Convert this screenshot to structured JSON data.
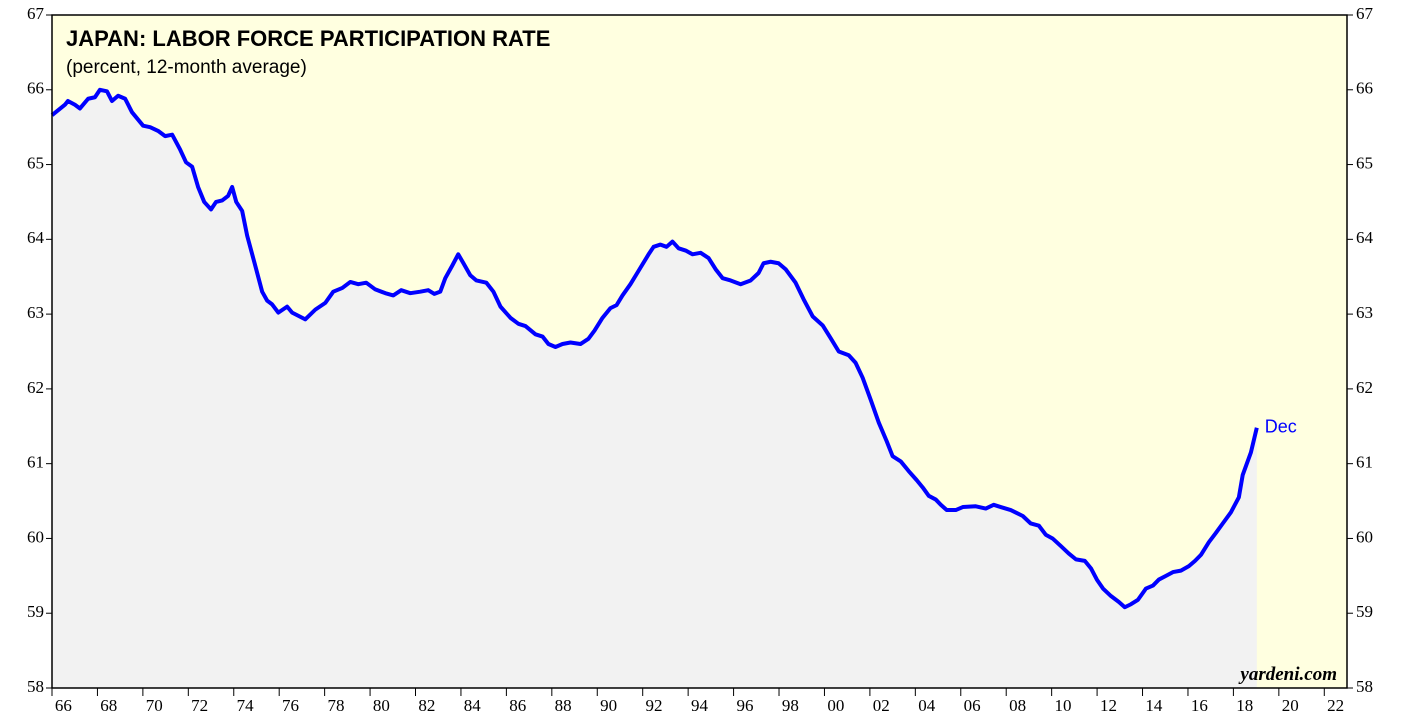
{
  "chart_data": {
    "type": "area",
    "title": "JAPAN: LABOR FORCE PARTICIPATION RATE",
    "subtitle": "(percent, 12-month average)",
    "annotation": "Dec",
    "source": "yardeni.com",
    "color": "#0000ff",
    "fill_color": "#f2f2f2",
    "background": "#ffffe0",
    "x": [
      1966.0,
      1966.57,
      1966.7,
      1967.01,
      1967.23,
      1967.59,
      1967.89,
      1968.11,
      1968.42,
      1968.64,
      1968.91,
      1969.22,
      1969.52,
      1970.01,
      1970.32,
      1970.67,
      1970.98,
      1971.29,
      1971.64,
      1971.9,
      1972.17,
      1972.43,
      1972.7,
      1973.0,
      1973.22,
      1973.49,
      1973.75,
      1973.93,
      1974.11,
      1974.37,
      1974.59,
      1974.9,
      1975.25,
      1975.47,
      1975.69,
      1975.96,
      1976.35,
      1976.57,
      1977.15,
      1977.59,
      1978.03,
      1978.38,
      1978.78,
      1979.13,
      1979.48,
      1979.83,
      1980.23,
      1980.67,
      1981.02,
      1981.37,
      1981.77,
      1982.21,
      1982.56,
      1982.83,
      1983.09,
      1983.31,
      1983.62,
      1983.88,
      1984.11,
      1984.41,
      1984.68,
      1985.12,
      1985.43,
      1985.74,
      1986.18,
      1986.53,
      1986.84,
      1987.28,
      1987.59,
      1987.85,
      1988.16,
      1988.47,
      1988.82,
      1989.26,
      1989.61,
      1989.88,
      1990.23,
      1990.58,
      1990.85,
      1991.11,
      1991.46,
      1991.9,
      1992.26,
      1992.48,
      1992.78,
      1993.05,
      1993.31,
      1993.58,
      1993.89,
      1994.19,
      1994.55,
      1994.9,
      1995.21,
      1995.52,
      1995.87,
      1996.31,
      1996.75,
      1997.1,
      1997.32,
      1997.63,
      1997.98,
      1998.29,
      1998.73,
      1999.08,
      1999.48,
      1999.92,
      2000.27,
      2000.63,
      2001.07,
      2001.37,
      2001.68,
      2002.04,
      2002.39,
      2002.74,
      2003.0,
      2003.36,
      2003.71,
      2004.06,
      2004.33,
      2004.59,
      2004.9,
      2005.12,
      2005.38,
      2005.78,
      2006.09,
      2006.66,
      2007.1,
      2007.45,
      2007.76,
      2008.2,
      2008.73,
      2009.08,
      2009.44,
      2009.74,
      2010.04,
      2010.4,
      2010.75,
      2011.07,
      2011.46,
      2011.73,
      2011.99,
      2012.26,
      2012.61,
      2012.96,
      2013.22,
      2013.49,
      2013.8,
      2014.15,
      2014.46,
      2014.72,
      2015.03,
      2015.34,
      2015.69,
      2016.04,
      2016.31,
      2016.57,
      2016.92,
      2017.22,
      2017.53,
      2017.89,
      2018.24,
      2018.41,
      2018.59,
      2018.77,
      2019.03
    ],
    "values": [
      65.66,
      65.8,
      65.85,
      65.8,
      65.75,
      65.88,
      65.9,
      66.0,
      65.98,
      65.85,
      65.92,
      65.88,
      65.7,
      65.52,
      65.5,
      65.45,
      65.38,
      65.4,
      65.2,
      65.03,
      64.97,
      64.7,
      64.5,
      64.4,
      64.5,
      64.52,
      64.58,
      64.7,
      64.5,
      64.38,
      64.05,
      63.7,
      63.3,
      63.18,
      63.13,
      63.02,
      63.1,
      63.02,
      62.93,
      63.06,
      63.15,
      63.3,
      63.35,
      63.43,
      63.4,
      63.42,
      63.33,
      63.28,
      63.25,
      63.32,
      63.28,
      63.3,
      63.32,
      63.27,
      63.3,
      63.48,
      63.65,
      63.8,
      63.68,
      63.52,
      63.45,
      63.42,
      63.3,
      63.1,
      62.95,
      62.87,
      62.84,
      62.73,
      62.7,
      62.6,
      62.56,
      62.6,
      62.62,
      62.6,
      62.67,
      62.78,
      62.95,
      63.08,
      63.12,
      63.25,
      63.4,
      63.62,
      63.8,
      63.9,
      63.93,
      63.9,
      63.97,
      63.88,
      63.85,
      63.8,
      63.82,
      63.75,
      63.6,
      63.48,
      63.45,
      63.4,
      63.45,
      63.55,
      63.68,
      63.7,
      63.68,
      63.6,
      63.42,
      63.2,
      62.97,
      62.85,
      62.68,
      62.5,
      62.45,
      62.35,
      62.15,
      61.85,
      61.55,
      61.3,
      61.1,
      61.03,
      60.9,
      60.78,
      60.68,
      60.57,
      60.52,
      60.45,
      60.38,
      60.38,
      60.42,
      60.43,
      60.4,
      60.45,
      60.42,
      60.38,
      60.3,
      60.2,
      60.17,
      60.05,
      60.0,
      59.9,
      59.8,
      59.72,
      59.7,
      59.6,
      59.45,
      59.33,
      59.23,
      59.15,
      59.08,
      59.12,
      59.18,
      59.33,
      59.37,
      59.45,
      59.5,
      59.55,
      59.57,
      59.63,
      59.7,
      59.78,
      59.95,
      60.07,
      60.2,
      60.35,
      60.55,
      60.85,
      61.0,
      61.15,
      61.48
    ],
    "xlim": [
      1966,
      2023
    ],
    "xticks": [
      {
        "value": 1966,
        "label": "66"
      },
      {
        "value": 1968,
        "label": "68"
      },
      {
        "value": 1970,
        "label": "70"
      },
      {
        "value": 1972,
        "label": "72"
      },
      {
        "value": 1974,
        "label": "74"
      },
      {
        "value": 1976,
        "label": "76"
      },
      {
        "value": 1978,
        "label": "78"
      },
      {
        "value": 1980,
        "label": "80"
      },
      {
        "value": 1982,
        "label": "82"
      },
      {
        "value": 1984,
        "label": "84"
      },
      {
        "value": 1986,
        "label": "86"
      },
      {
        "value": 1988,
        "label": "88"
      },
      {
        "value": 1990,
        "label": "90"
      },
      {
        "value": 1992,
        "label": "92"
      },
      {
        "value": 1994,
        "label": "94"
      },
      {
        "value": 1996,
        "label": "96"
      },
      {
        "value": 1998,
        "label": "98"
      },
      {
        "value": 2000,
        "label": "00"
      },
      {
        "value": 2002,
        "label": "02"
      },
      {
        "value": 2004,
        "label": "04"
      },
      {
        "value": 2006,
        "label": "06"
      },
      {
        "value": 2008,
        "label": "08"
      },
      {
        "value": 2010,
        "label": "10"
      },
      {
        "value": 2012,
        "label": "12"
      },
      {
        "value": 2014,
        "label": "14"
      },
      {
        "value": 2016,
        "label": "16"
      },
      {
        "value": 2018,
        "label": "18"
      },
      {
        "value": 2020,
        "label": "20"
      },
      {
        "value": 2022,
        "label": "22"
      }
    ],
    "ylim": [
      58,
      67
    ],
    "yticks": [
      58,
      59,
      60,
      61,
      62,
      63,
      64,
      65,
      66,
      67
    ],
    "y2lim": [
      58,
      67
    ],
    "y2ticks": [
      58,
      59,
      60,
      61,
      62,
      63,
      64,
      65,
      66,
      67
    ]
  }
}
